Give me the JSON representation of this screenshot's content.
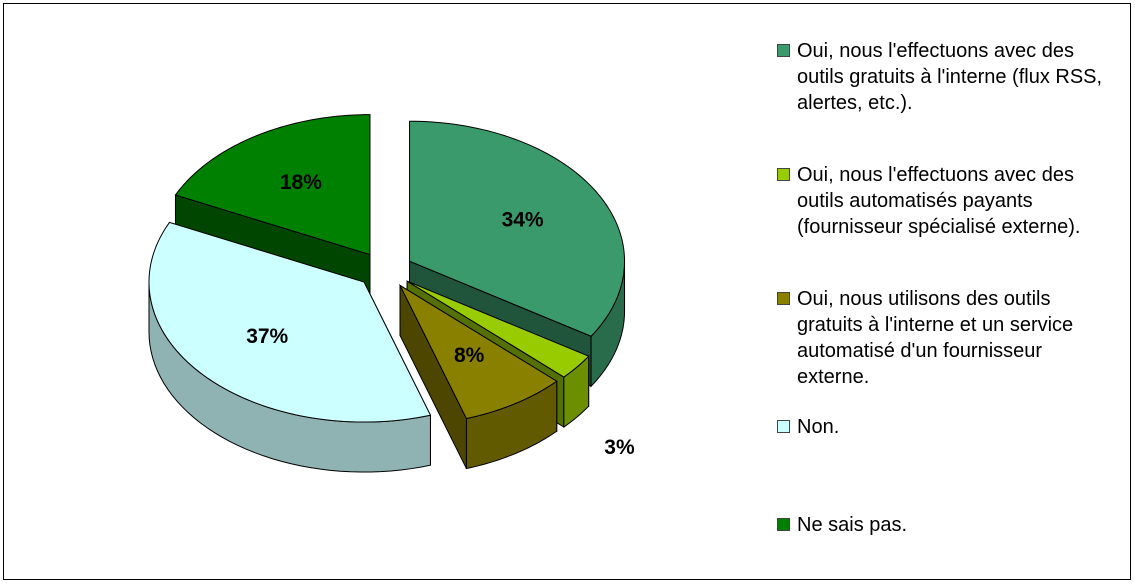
{
  "chart_data": {
    "type": "pie",
    "categories": [
      "Oui, nous l'effectuons avec des outils gratuits à l'interne (flux RSS, alertes, etc.).",
      "Oui, nous l'effectuons avec des outils automatisés payants (fournisseur spécialisé externe).",
      "Oui, nous utilisons des outils gratuits à l'interne et un service automatisé d'un fournisseur externe.",
      "Non.",
      "Ne sais pas."
    ],
    "values": [
      34,
      3,
      8,
      37,
      18
    ],
    "value_labels": [
      "34%",
      "3%",
      "8%",
      "37%",
      "18%"
    ],
    "colors": [
      "#3a9a6b",
      "#99cc00",
      "#8a8000",
      "#ccffff",
      "#008000"
    ],
    "legend": "right"
  }
}
